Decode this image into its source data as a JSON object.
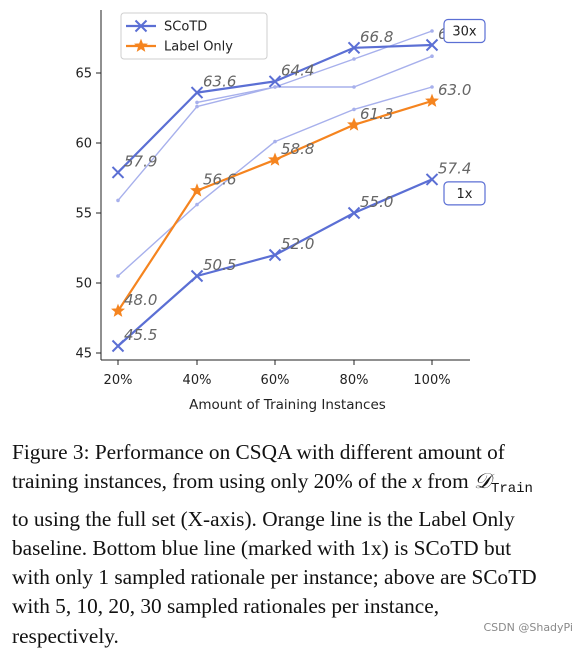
{
  "chart_data": {
    "type": "line",
    "xlabel": "Amount of Training Instances",
    "ylabel": "",
    "categories": [
      "20%",
      "40%",
      "60%",
      "80%",
      "100%"
    ],
    "y_ticks": [
      "45",
      "50",
      "55",
      "60",
      "65"
    ],
    "ylim": [
      44.5,
      69.5
    ],
    "grid": false,
    "legend_position": "top-left",
    "series": [
      {
        "name": "SCoTD",
        "role": "main-30x",
        "values": [
          57.9,
          63.6,
          64.4,
          66.8,
          67.0
        ],
        "labels": [
          "57.9",
          "63.6",
          "64.4",
          "66.8",
          "67.0"
        ],
        "color": "#5b6fd4",
        "marker": "x"
      },
      {
        "role": "faint",
        "values": [
          55.9,
          62.6,
          64.0,
          66.0,
          68.0
        ],
        "color": "#a7b0ec"
      },
      {
        "role": "faint",
        "values": [
          null,
          62.9,
          64.0,
          64.0,
          66.2
        ],
        "color": "#a7b0ec"
      },
      {
        "role": "faint",
        "values": [
          50.5,
          55.6,
          60.1,
          62.4,
          64.0
        ],
        "color": "#a7b0ec"
      },
      {
        "name": "Label Only",
        "role": "orange",
        "values": [
          48.0,
          56.6,
          58.8,
          61.3,
          63.0
        ],
        "labels": [
          "48.0",
          "56.6",
          "58.8",
          "61.3",
          "63.0"
        ],
        "color": "#f5841f",
        "marker": "star"
      },
      {
        "role": "main-1x",
        "values": [
          45.5,
          50.5,
          52.0,
          55.0,
          57.4
        ],
        "labels": [
          "45.5",
          "50.5",
          "52.0",
          "55.0",
          "57.4"
        ],
        "color": "#5b6fd4",
        "marker": "x"
      }
    ],
    "annotations": [
      {
        "text": "30x",
        "anchor_value": 68.0
      },
      {
        "text": "1x",
        "anchor_value": 56.4
      }
    ]
  },
  "caption": {
    "p1": "Figure 3: Performance on CSQA with different amount of training instances, from using only 20",
    "percent": "%",
    "p2": " of the ",
    "x_symbol": "x",
    "p3": " from ",
    "d_symbol": "𝒟",
    "d_subscript": "Train",
    "p4": " to using the full set (X-axis). Orange line is the Label Only baseline.  Bottom blue line (marked with 1x) is SCoTD but with only 1 sampled rationale per instance; above are SCoTD with 5, 10, 20, 30 sampled rationales per instance, respectively."
  },
  "watermark": "CSDN @ShadyPi"
}
